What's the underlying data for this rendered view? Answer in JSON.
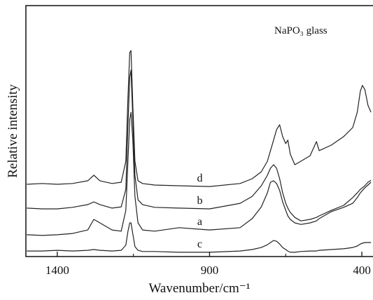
{
  "chart_data": {
    "type": "line",
    "annotation": "NaPO₃ glass",
    "x_label": "Wavenumber/cm⁻¹",
    "y_label": "Relative intensity",
    "x": [
      1500,
      1450,
      1400,
      1350,
      1300,
      1280,
      1260,
      1220,
      1190,
      1175,
      1168,
      1162,
      1158,
      1152,
      1145,
      1135,
      1120,
      1080,
      1000,
      900,
      800,
      760,
      730,
      710,
      700,
      690,
      680,
      670,
      660,
      650,
      643,
      635,
      620,
      600,
      570,
      549,
      540,
      500,
      460,
      430,
      415,
      405,
      398,
      390,
      380,
      370
    ],
    "series": [
      {
        "name": "d",
        "color": "#222222",
        "values": [
          28.8,
          29.1,
          28.8,
          29.1,
          30.2,
          32.4,
          30.2,
          29.1,
          29.6,
          38.0,
          63.1,
          81.3,
          82.1,
          60.3,
          38.0,
          30.2,
          29.1,
          28.5,
          28.2,
          27.9,
          29.1,
          31.0,
          33.8,
          38.0,
          42.2,
          46.4,
          50.6,
          52.5,
          47.8,
          45.0,
          46.4,
          40.8,
          36.6,
          38.0,
          40.2,
          45.8,
          42.2,
          44.4,
          47.8,
          51.4,
          57.5,
          65.9,
          68.2,
          66.5,
          60.3,
          57.5
        ]
      },
      {
        "name": "b",
        "color": "#222222",
        "values": [
          19.3,
          19.0,
          19.0,
          19.6,
          20.7,
          21.8,
          20.7,
          19.3,
          19.8,
          26.8,
          52.0,
          71.5,
          74.3,
          54.7,
          32.4,
          22.6,
          20.7,
          19.6,
          19.3,
          19.0,
          21.2,
          24.0,
          28.2,
          32.4,
          35.2,
          36.6,
          35.2,
          31.0,
          25.4,
          21.2,
          19.3,
          17.6,
          15.6,
          14.2,
          14.8,
          15.6,
          16.2,
          18.4,
          20.4,
          23.5,
          25.4,
          26.8,
          27.4,
          28.2,
          29.6,
          30.4
        ]
      },
      {
        "name": "a",
        "color": "#222222",
        "values": [
          8.7,
          8.4,
          8.7,
          9.2,
          10.6,
          14.8,
          13.4,
          10.6,
          10.1,
          18.4,
          38.0,
          54.7,
          57.5,
          46.4,
          24.0,
          13.4,
          10.6,
          10.1,
          11.5,
          10.6,
          11.5,
          15.1,
          19.8,
          25.4,
          29.6,
          30.2,
          29.1,
          26.3,
          21.8,
          18.4,
          16.2,
          14.8,
          13.4,
          12.8,
          13.4,
          14.2,
          15.1,
          17.9,
          19.6,
          21.2,
          23.5,
          25.4,
          26.3,
          27.4,
          28.5,
          29.6
        ]
      },
      {
        "name": "c",
        "color": "#222222",
        "values": [
          2.2,
          2.2,
          2.5,
          2.2,
          2.5,
          2.8,
          2.5,
          2.2,
          2.5,
          4.5,
          10,
          13.4,
          13.4,
          9,
          4,
          2.5,
          2,
          2,
          1.7,
          1.7,
          2.2,
          2.8,
          3.6,
          4.7,
          5.6,
          6.4,
          6.1,
          5,
          3.6,
          2.8,
          2.2,
          1.7,
          1.7,
          2,
          2.2,
          2.2,
          2.5,
          2.8,
          3.1,
          3.6,
          4.2,
          5,
          5.3,
          5.6,
          5.6,
          5.6
        ]
      }
    ],
    "xlim": [
      1503,
      368
    ],
    "ylim": [
      0,
      100
    ],
    "xticks": [
      1400,
      900,
      400
    ],
    "xminorticks": [
      1150,
      650
    ]
  }
}
